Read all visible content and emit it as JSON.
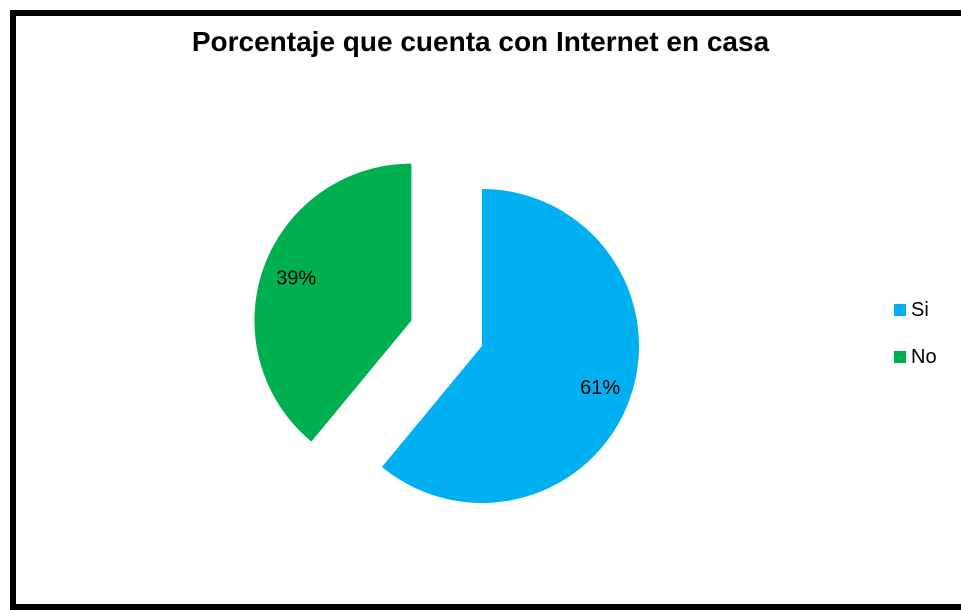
{
  "chart_data": {
    "type": "pie",
    "title": "Porcentaje que cuenta con Internet en casa",
    "categories": [
      "Si",
      "No"
    ],
    "values": [
      61,
      39
    ],
    "data_labels": [
      "61%",
      "39%"
    ],
    "colors": [
      "#00B0F0",
      "#00B050"
    ],
    "exploded": true,
    "legend_position": "right"
  }
}
